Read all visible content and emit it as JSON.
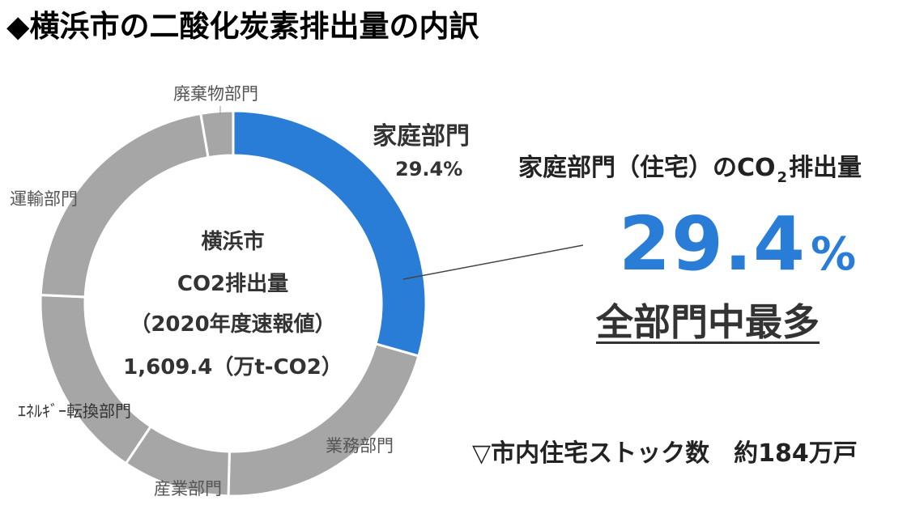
{
  "title": "◆横浜市の二酸化炭素排出量の内訳",
  "chart_data": {
    "type": "pie",
    "slices": [
      {
        "name": "家庭部門",
        "value": 29.4,
        "color": "#2a7dd6"
      },
      {
        "name": "業務部門",
        "value": 21.0,
        "color": "#a6a6a6"
      },
      {
        "name": "産業部門",
        "value": 9.0,
        "color": "#a6a6a6"
      },
      {
        "name": "ｴﾈﾙｷﾞｰ転換部門",
        "value": 16.3,
        "color": "#a6a6a6"
      },
      {
        "name": "運輸部門",
        "value": 21.6,
        "color": "#a6a6a6"
      },
      {
        "name": "廃棄物部門",
        "value": 2.7,
        "color": "#a6a6a6"
      }
    ],
    "center_text": [
      "横浜市",
      "CO2排出量",
      "（2020年度速報値）",
      "1,609.4（万t-CO2）"
    ],
    "highlight_label": "家庭部門",
    "highlight_value": "29.4%"
  },
  "callout": {
    "heading_pre": "家庭部門（住宅）のCO",
    "heading_sub": "2",
    "heading_post": "排出量",
    "big_number": "29.4",
    "big_unit": "%",
    "emphasis": "全部門中最多"
  },
  "footnote": "▽市内住宅ストック数　約184万戸"
}
